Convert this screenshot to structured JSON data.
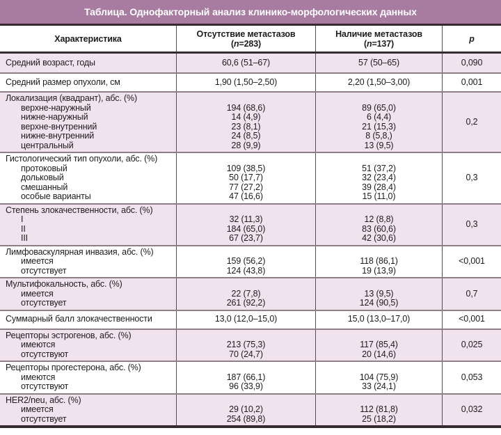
{
  "title": "Таблица. Однофакторный анализ клинико-морфологических данных",
  "header": {
    "col1": "Характеристика",
    "col2": {
      "line1": "Отсутствие метастазов",
      "paren": "(",
      "n": "n",
      "rest": "=283)"
    },
    "col3": {
      "line1": "Наличие метастазов",
      "paren": "(",
      "n": "n",
      "rest": "=137)"
    },
    "p": "p"
  },
  "rows": [
    {
      "label": "Средний возраст, годы",
      "v1": "60,6 (51–67)",
      "v2": "57 (50–65)",
      "p": "0,090"
    },
    {
      "label": "Средний размер опухоли, см",
      "v1": "1,90 (1,50–2,50)",
      "v2": "2,20 (1,50–3,00)",
      "p": "0,001"
    },
    {
      "label": "Локализация (квадрант), абс. (%)",
      "p": "0,2",
      "sub": [
        {
          "name": "верхне-наружный",
          "v1": "194 (68,6)",
          "v2": "89 (65,0)"
        },
        {
          "name": "нижне-наружный",
          "v1": "14 (4,9)",
          "v2": "6 (4,4)"
        },
        {
          "name": "верхне-внутренний",
          "v1": "23 (8,1)",
          "v2": "21 (15,3)"
        },
        {
          "name": "нижне-внутренний",
          "v1": "24 (8,5)",
          "v2": "8 (5,8,)"
        },
        {
          "name": "центральный",
          "v1": "28 (9,9)",
          "v2": "13 (9,5)"
        }
      ]
    },
    {
      "label": "Гистологический тип опухоли, абс. (%)",
      "p": "0,3",
      "sub": [
        {
          "name": "протоковый",
          "v1": "109 (38,5)",
          "v2": "51 (37,2)"
        },
        {
          "name": "дольковый",
          "v1": "50 (17,7)",
          "v2": "32 (23,4)"
        },
        {
          "name": "смешанный",
          "v1": "77 (27,2)",
          "v2": "39 (28,4)"
        },
        {
          "name": "особые варианты",
          "v1": "47 (16,6)",
          "v2": "15 (11,0)"
        }
      ]
    },
    {
      "label": "Степень злокачественности, абс. (%)",
      "p": "0,3",
      "sub": [
        {
          "name": "I",
          "v1": "32 (11,3)",
          "v2": "12 (8,8)"
        },
        {
          "name": "II",
          "v1": "184 (65,0)",
          "v2": "83 (60,6)"
        },
        {
          "name": "III",
          "v1": "67 (23,7)",
          "v2": "42 (30,6)"
        }
      ]
    },
    {
      "label": "Лимфоваскулярная инвазия, абс. (%)",
      "p": "<0,001",
      "sub": [
        {
          "name": "имеется",
          "v1": "159 (56,2)",
          "v2": "118 (86,1)"
        },
        {
          "name": "отсутствует",
          "v1": "124 (43,8)",
          "v2": "19 (13,9)"
        }
      ]
    },
    {
      "label": "Мультифокальность, абс. (%)",
      "p": "0,7",
      "sub": [
        {
          "name": "имеется",
          "v1": "22 (7,8)",
          "v2": "13 (9,5)"
        },
        {
          "name": "отсутствует",
          "v1": "261 (92,2)",
          "v2": "124 (90,5)"
        }
      ]
    },
    {
      "label": "Суммарный балл злокачественности",
      "v1": "13,0 (12,0–15,0)",
      "v2": "15,0 (13,0–17,0)",
      "p": "<0,001"
    },
    {
      "label": "Рецепторы эстрогенов, абс. (%)",
      "p": "0,025",
      "sub": [
        {
          "name": "имеются",
          "v1": "213 (75,3)",
          "v2": "117 (85,4)"
        },
        {
          "name": "отсутствуют",
          "v1": "70 (24,7)",
          "v2": "20 (14,6)"
        }
      ]
    },
    {
      "label": "Рецепторы прогестерона, абс. (%)",
      "p": "0,053",
      "sub": [
        {
          "name": "имеются",
          "v1": "187 (66,1)",
          "v2": "104 (75,9)"
        },
        {
          "name": "отсутствуют",
          "v1": "96 (33,9)",
          "v2": "33 (24,1)"
        }
      ]
    },
    {
      "label": "HER2/neu, абс. (%)",
      "p": "0,032",
      "sub": [
        {
          "name": "имеется",
          "v1": "29 (10,2)",
          "v2": "112 (81,8)"
        },
        {
          "name": "отсутствует",
          "v1": "254 (89,8)",
          "v2": "25 (18,2)"
        }
      ]
    }
  ],
  "colors": {
    "accent_purple": "#a87ca1",
    "row_shade_pink": "#f1e3ee",
    "dark_border": "#342a30",
    "row_separator": "#8e7f87"
  }
}
